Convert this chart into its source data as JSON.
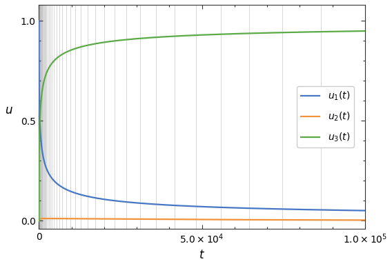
{
  "t_max": 100000,
  "t_points": 3000,
  "color_u1": "#4777c4",
  "color_u2": "#f0933a",
  "color_u3": "#5aaa45",
  "vline_color": "#bbbbbb",
  "vline_alpha": 0.7,
  "vline_lw": 0.6,
  "line_lw": 1.6,
  "xlabel": "$t$",
  "ylabel": "$u$",
  "legend_labels": [
    "$u_1(t)$",
    "$u_2(t)$",
    "$u_3(t)$"
  ],
  "xlim": [
    0,
    100000
  ],
  "ylim": [
    -0.04,
    1.08
  ],
  "figsize": [
    5.68,
    3.86
  ],
  "dpi": 100,
  "yticks": [
    0.0,
    0.5,
    1.0
  ],
  "curve_a": 0.0004,
  "u2_scale": 0.012
}
